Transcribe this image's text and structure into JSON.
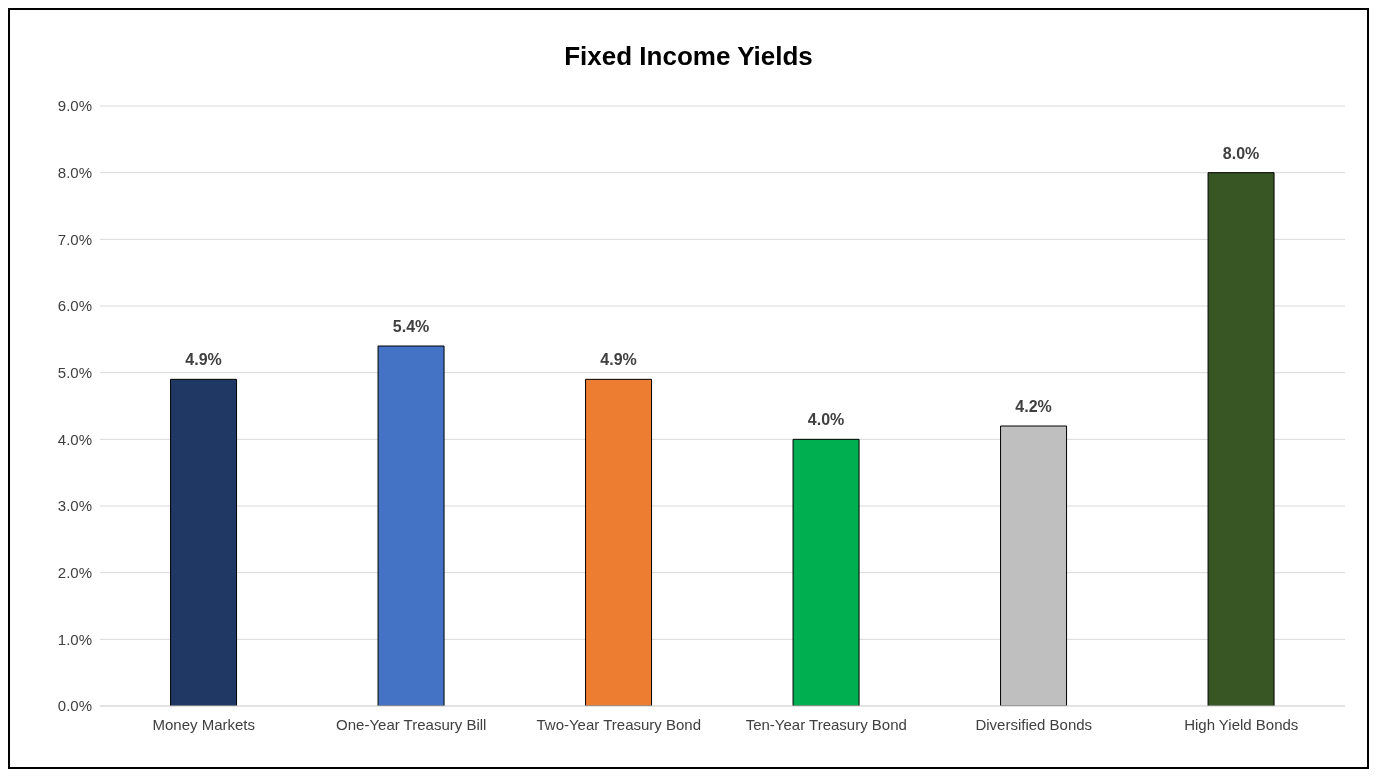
{
  "chart_data": {
    "type": "bar",
    "title": "Fixed Income Yields",
    "categories": [
      "Money Markets",
      "One-Year Treasury Bill",
      "Two-Year Treasury Bond",
      "Ten-Year Treasury Bond",
      "Diversified Bonds",
      "High Yield Bonds"
    ],
    "values": [
      4.9,
      5.4,
      4.9,
      4.0,
      4.2,
      8.0
    ],
    "colors": [
      "#203864",
      "#4472c4",
      "#ed7d31",
      "#00b050",
      "#bfbfbf",
      "#375623"
    ],
    "value_labels": [
      "4.9%",
      "5.4%",
      "4.9%",
      "4.0%",
      "4.2%",
      "8.0%"
    ],
    "ylim": [
      0,
      9
    ],
    "yticks": [
      {
        "value": 0,
        "label": "0.0%"
      },
      {
        "value": 1,
        "label": "1.0%"
      },
      {
        "value": 2,
        "label": "2.0%"
      },
      {
        "value": 3,
        "label": "3.0%"
      },
      {
        "value": 4,
        "label": "4.0%"
      },
      {
        "value": 5,
        "label": "5.0%"
      },
      {
        "value": 6,
        "label": "6.0%"
      },
      {
        "value": 7,
        "label": "7.0%"
      },
      {
        "value": 8,
        "label": "8.0%"
      },
      {
        "value": 9,
        "label": "9.0%"
      }
    ],
    "grid": "y",
    "legend": false
  }
}
